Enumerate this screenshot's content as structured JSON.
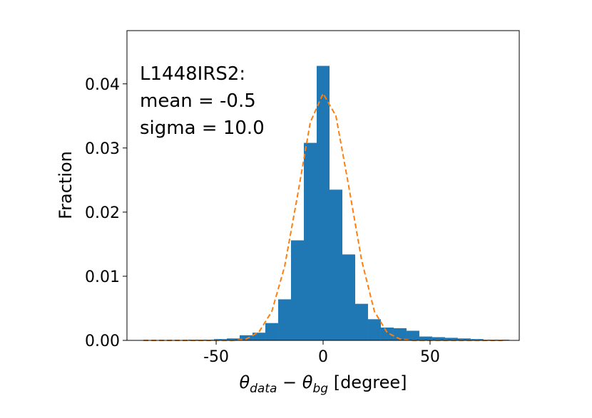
{
  "chart_data": {
    "type": "histogram",
    "ylabel": "Fraction",
    "xlabel": {
      "theta1": "θ",
      "sub1": "data",
      "minus": " − ",
      "theta2": "θ",
      "sub2": "bg",
      "unit": " [degree]"
    },
    "annotation": [
      "L1448IRS2:",
      "mean = -0.5",
      "sigma = 10.0"
    ],
    "color": "#1f77b4",
    "bins": [
      -87,
      -81,
      -75,
      -69,
      -63,
      -57,
      -51,
      -45,
      -39,
      -33,
      -27,
      -21,
      -15,
      -9,
      -3,
      3,
      9,
      15,
      21,
      27,
      33,
      39,
      45,
      51,
      57,
      63,
      69,
      75,
      81,
      87
    ],
    "values": [
      0,
      0,
      0,
      0,
      0.0001,
      0.0001,
      0.0002,
      0.0003,
      0.0008,
      0.0012,
      0.0027,
      0.0064,
      0.0156,
      0.0308,
      0.0428,
      0.0235,
      0.0134,
      0.0057,
      0.0033,
      0.002,
      0.0019,
      0.0015,
      0.0006,
      0.0005,
      0.0004,
      0.0003,
      0.0002,
      0.0001,
      0.0001
    ],
    "line": {
      "color": "#ff7f0e",
      "x": [
        -84,
        -78,
        -72,
        -66,
        -60,
        -54,
        -48,
        -42,
        -36,
        -30,
        -24,
        -18,
        -12,
        -6,
        0,
        6,
        12,
        18,
        24,
        30,
        36,
        42,
        48,
        54,
        60,
        66,
        72,
        78,
        84
      ],
      "values": [
        0,
        0,
        0,
        0,
        0,
        0,
        0,
        0,
        0.0002,
        0.0013,
        0.0045,
        0.0115,
        0.0225,
        0.034,
        0.0385,
        0.035,
        0.024,
        0.0125,
        0.0045,
        0.0012,
        0.0002,
        0,
        0,
        0,
        0,
        0,
        0,
        0,
        0
      ]
    },
    "xlim": [
      -91.7,
      91.7
    ],
    "ylim": [
      0,
      0.0483
    ],
    "xticks": [
      -50,
      0,
      50
    ],
    "yticks": [
      {
        "value": 0,
        "label": "0.00"
      },
      {
        "value": 0.01,
        "label": "0.01"
      },
      {
        "value": 0.02,
        "label": "0.02"
      },
      {
        "value": 0.03,
        "label": "0.03"
      },
      {
        "value": 0.04,
        "label": "0.04"
      }
    ]
  }
}
